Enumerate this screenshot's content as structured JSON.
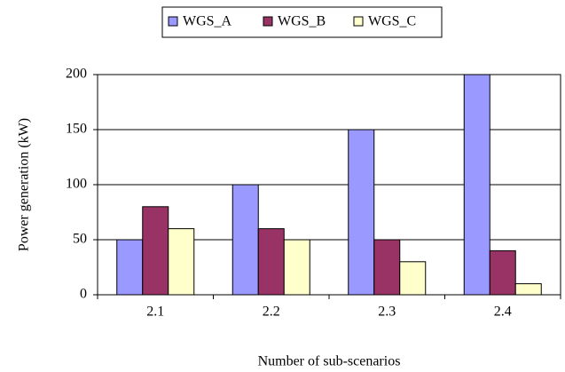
{
  "chart_data": {
    "type": "bar",
    "categories": [
      "2.1",
      "2.2",
      "2.3",
      "2.4"
    ],
    "series": [
      {
        "name": "WGS_A",
        "color": "#9999ff",
        "values": [
          50,
          100,
          150,
          200
        ]
      },
      {
        "name": "WGS_B",
        "color": "#993366",
        "values": [
          80,
          60,
          50,
          40
        ]
      },
      {
        "name": "WGS_C",
        "color": "#ffffcc",
        "values": [
          60,
          50,
          30,
          10
        ]
      }
    ],
    "x_label": "Number of sub-scenarios",
    "y_label": "Power generation (kW)",
    "ylim": [
      0,
      200
    ],
    "yticks": [
      0,
      50,
      100,
      150,
      200
    ],
    "grid": true,
    "legend": "top"
  }
}
